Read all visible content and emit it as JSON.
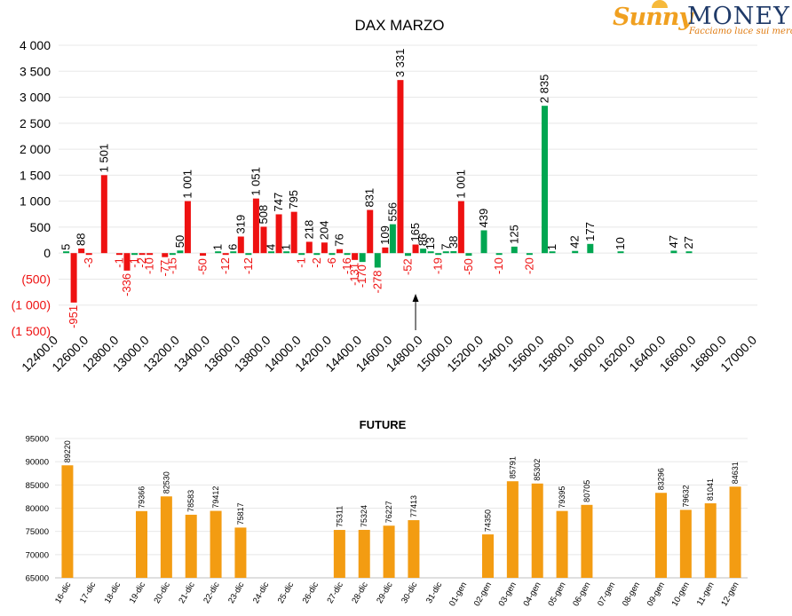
{
  "logo": {
    "brand_a": "Sunny",
    "brand_b": "MONEY",
    "tagline": "Facciamo luce sui mercati"
  },
  "colors": {
    "red": "#ee1111",
    "green": "#00a651",
    "orange": "#f39c12",
    "grid": "#e8e8e8"
  },
  "chart_data": [
    {
      "type": "bar",
      "title": "DAX MARZO",
      "x_ticks": [
        "12400.0",
        "12600.0",
        "12800.0",
        "13000.0",
        "13200.0",
        "13400.0",
        "13600.0",
        "13800.0",
        "14000.0",
        "14200.0",
        "14400.0",
        "14600.0",
        "14800.0",
        "15000.0",
        "15200.0",
        "15400.0",
        "15600.0",
        "15800.0",
        "16000.0",
        "16200.0",
        "16400.0",
        "16600.0",
        "16800.0",
        "17000.0"
      ],
      "xlim": [
        12400,
        17000
      ],
      "y_ticks": [
        "4 000",
        "3 500",
        "3 000",
        "2 500",
        "2 000",
        "1 500",
        "1 000",
        "500",
        "0",
        "(500)",
        "(1 000)",
        "(1 500)"
      ],
      "ylim": [
        -1500,
        4000
      ],
      "series": [
        {
          "color": "red",
          "points": [
            {
              "x": 12500,
              "v": -951,
              "label": "-951"
            },
            {
              "x": 12550,
              "v": 88,
              "label": "88"
            },
            {
              "x": 12600,
              "v": -3,
              "label": "-3"
            },
            {
              "x": 12700,
              "v": 1501,
              "label": "1 501"
            },
            {
              "x": 12800,
              "v": -1,
              "label": "-1"
            },
            {
              "x": 12850,
              "v": -336,
              "label": "-336"
            },
            {
              "x": 12950,
              "v": -2,
              "label": "-2"
            },
            {
              "x": 13000,
              "v": -10,
              "label": "-10"
            },
            {
              "x": 13100,
              "v": -77,
              "label": "-77"
            },
            {
              "x": 13250,
              "v": 1001,
              "label": "1 001"
            },
            {
              "x": 13350,
              "v": -50,
              "label": "-50"
            },
            {
              "x": 13500,
              "v": -12,
              "label": "-12"
            },
            {
              "x": 13600,
              "v": 319,
              "label": "319"
            },
            {
              "x": 13700,
              "v": 1051,
              "label": "1 051"
            },
            {
              "x": 13750,
              "v": 508,
              "label": "508"
            },
            {
              "x": 13850,
              "v": 747,
              "label": "747"
            },
            {
              "x": 13950,
              "v": 795,
              "label": "795"
            },
            {
              "x": 14050,
              "v": 218,
              "label": "218"
            },
            {
              "x": 14150,
              "v": 204,
              "label": "204"
            },
            {
              "x": 14250,
              "v": 76,
              "label": "76"
            },
            {
              "x": 14350,
              "v": -131,
              "label": "-131"
            },
            {
              "x": 14450,
              "v": 831,
              "label": "831"
            },
            {
              "x": 14550,
              "v": 109,
              "label": "109"
            },
            {
              "x": 14650,
              "v": 3331,
              "label": "3 331"
            },
            {
              "x": 14750,
              "v": 165,
              "label": "165"
            },
            {
              "x": 15050,
              "v": 1001,
              "label": "1 001"
            }
          ]
        },
        {
          "color": "green",
          "points": [
            {
              "x": 12450,
              "v": 5,
              "label": "5"
            },
            {
              "x": 12900,
              "v": -1,
              "label": "-1"
            },
            {
              "x": 13150,
              "v": -15,
              "label": "-15"
            },
            {
              "x": 13200,
              "v": 50,
              "label": "50"
            },
            {
              "x": 13450,
              "v": 1,
              "label": "1"
            },
            {
              "x": 13550,
              "v": 6,
              "label": "6"
            },
            {
              "x": 13650,
              "v": -12,
              "label": "-12"
            },
            {
              "x": 13800,
              "v": 4,
              "label": "4"
            },
            {
              "x": 13900,
              "v": 1,
              "label": "1"
            },
            {
              "x": 14000,
              "v": -1,
              "label": "-1"
            },
            {
              "x": 14100,
              "v": -2,
              "label": "-2"
            },
            {
              "x": 14200,
              "v": -6,
              "label": "-6"
            },
            {
              "x": 14300,
              "v": -16,
              "label": "-16"
            },
            {
              "x": 14400,
              "v": -170,
              "label": "-170"
            },
            {
              "x": 14500,
              "v": -278,
              "label": "-278"
            },
            {
              "x": 14600,
              "v": 556,
              "label": "556"
            },
            {
              "x": 14700,
              "v": -52,
              "label": "-52"
            },
            {
              "x": 14800,
              "v": 86,
              "label": "86"
            },
            {
              "x": 14850,
              "v": 13,
              "label": "13"
            },
            {
              "x": 14900,
              "v": -19,
              "label": "-19"
            },
            {
              "x": 14950,
              "v": 7,
              "label": "7"
            },
            {
              "x": 15000,
              "v": 38,
              "label": "38"
            },
            {
              "x": 15100,
              "v": -50,
              "label": "-50"
            },
            {
              "x": 15200,
              "v": 439,
              "label": "439"
            },
            {
              "x": 15300,
              "v": -10,
              "label": "-10"
            },
            {
              "x": 15400,
              "v": 125,
              "label": "125"
            },
            {
              "x": 15500,
              "v": -20,
              "label": "-20"
            },
            {
              "x": 15600,
              "v": 2835,
              "label": "2 835"
            },
            {
              "x": 15650,
              "v": 1,
              "label": "1"
            },
            {
              "x": 15800,
              "v": 42,
              "label": "42"
            },
            {
              "x": 15900,
              "v": 177,
              "label": "177"
            },
            {
              "x": 16100,
              "v": 10,
              "label": "10"
            },
            {
              "x": 16450,
              "v": 47,
              "label": "47"
            },
            {
              "x": 16550,
              "v": 27,
              "label": "27"
            }
          ]
        }
      ],
      "marker_arrow_x": 14750,
      "grid": true
    },
    {
      "type": "bar",
      "title": "FUTURE",
      "categories": [
        "16-dic",
        "17-dic",
        "18-dic",
        "19-dic",
        "20-dic",
        "21-dic",
        "22-dic",
        "23-dic",
        "24-dic",
        "25-dic",
        "26-dic",
        "27-dic",
        "28-dic",
        "29-dic",
        "30-dic",
        "31-dic",
        "01-gen",
        "02-gen",
        "03-gen",
        "04-gen",
        "05-gen",
        "06-gen",
        "07-gen",
        "08-gen",
        "09-gen",
        "10-gen",
        "11-gen",
        "12-gen"
      ],
      "values": [
        89220,
        null,
        null,
        79366,
        82530,
        78583,
        79412,
        75817,
        null,
        null,
        null,
        75311,
        75324,
        76227,
        77413,
        null,
        null,
        74350,
        85791,
        85302,
        79395,
        80705,
        null,
        null,
        83296,
        79632,
        81041,
        84631
      ],
      "value_labels": [
        "89220",
        "",
        "",
        "79366",
        "82530",
        "78583",
        "79412",
        "75817",
        "",
        "",
        "",
        "75311",
        "75324",
        "76227",
        "77413",
        "",
        "",
        "74350",
        "85791",
        "85302",
        "79395",
        "80705",
        "",
        "",
        "83296",
        "79632",
        "81041",
        "84631"
      ],
      "y_ticks": [
        "95000",
        "90000",
        "85000",
        "80000",
        "75000",
        "70000",
        "65000"
      ],
      "ylim": [
        65000,
        95000
      ],
      "grid": true
    }
  ]
}
